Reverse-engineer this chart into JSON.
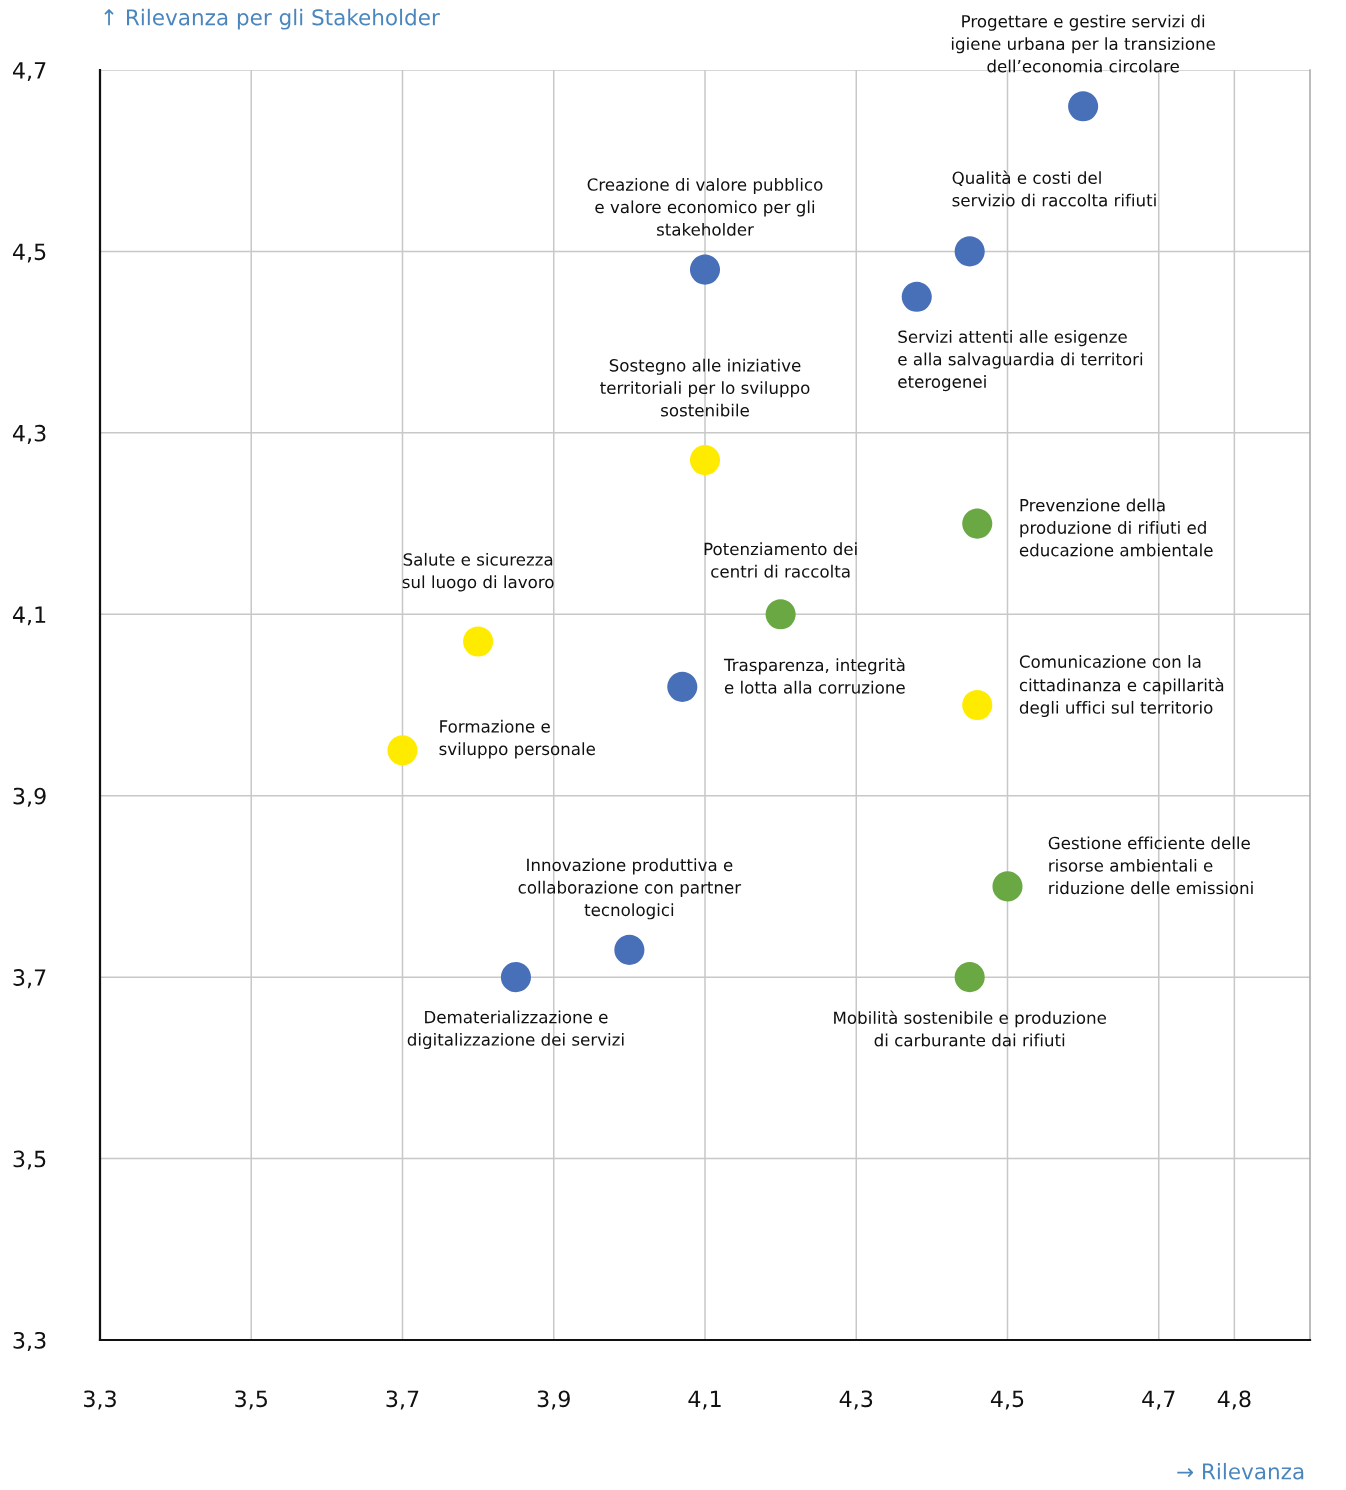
{
  "chart_data": {
    "type": "scatter",
    "xlabel": "→ Rilevanza",
    "ylabel": "↑ Rilevanza per gli Stakeholder",
    "x": [
      4.6,
      4.1,
      4.45,
      4.38,
      4.1,
      4.46,
      4.2,
      3.8,
      4.07,
      4.46,
      3.7,
      4.5,
      4.0,
      3.85,
      4.45
    ],
    "values": [
      4.66,
      4.48,
      4.5,
      4.45,
      4.27,
      4.2,
      4.1,
      4.07,
      4.02,
      4.0,
      3.95,
      3.8,
      3.73,
      3.7,
      3.7
    ],
    "colors": [
      "#4770b8",
      "#4770b8",
      "#4770b8",
      "#4770b8",
      "#ffeb00",
      "#6aa843",
      "#6aa843",
      "#ffeb00",
      "#4770b8",
      "#ffeb00",
      "#ffeb00",
      "#6aa843",
      "#4770b8",
      "#4770b8",
      "#6aa843"
    ],
    "marker": "circle",
    "xlim": [
      3.3,
      4.9
    ],
    "ylim": [
      3.3,
      4.7
    ],
    "xticks": [
      {
        "value": 3.3,
        "label": "3,3"
      },
      {
        "value": 3.5,
        "label": "3,5"
      },
      {
        "value": 3.7,
        "label": "3,7"
      },
      {
        "value": 3.9,
        "label": "3,9"
      },
      {
        "value": 4.1,
        "label": "4,1"
      },
      {
        "value": 4.3,
        "label": "4,3"
      },
      {
        "value": 4.5,
        "label": "4,5"
      },
      {
        "value": 4.7,
        "label": "4,7"
      },
      {
        "value": 4.8,
        "label": "4,8"
      }
    ],
    "yticks": [
      {
        "value": 3.3,
        "label": "3,3"
      },
      {
        "value": 3.5,
        "label": "3,5"
      },
      {
        "value": 3.7,
        "label": "3,7"
      },
      {
        "value": 3.9,
        "label": "3,9"
      },
      {
        "value": 4.1,
        "label": "4,1"
      },
      {
        "value": 4.3,
        "label": "4,3"
      },
      {
        "value": 4.5,
        "label": "4,5"
      },
      {
        "value": 4.7,
        "label": "4,7"
      }
    ],
    "grid": true,
    "annotations": [
      {
        "text": "Progettare e gestire servizi di\nigiene urbana per la transizione\ndell’economia circolare",
        "x": 4.6,
        "y": 4.66
      },
      {
        "text": "Creazione di valore pubblico\ne valore economico per gli\nstakeholder",
        "x": 4.1,
        "y": 4.48
      },
      {
        "text": "Qualità e costi del\nservizio di raccolta rifiuti",
        "x": 4.45,
        "y": 4.5
      },
      {
        "text": "Servizi attenti alle esigenze\ne alla salvaguardia di territori\neterogenei",
        "x": 4.38,
        "y": 4.45
      },
      {
        "text": "Sostegno alle iniziative\nterritoriali per lo sviluppo\nsostenibile",
        "x": 4.1,
        "y": 4.27
      },
      {
        "text": "Prevenzione della\nproduzione di rifiuti ed\neducazione ambientale",
        "x": 4.46,
        "y": 4.2
      },
      {
        "text": "Potenziamento dei\ncentri di raccolta",
        "x": 4.2,
        "y": 4.1
      },
      {
        "text": "Salute e sicurezza\nsul luogo di lavoro",
        "x": 3.8,
        "y": 4.07
      },
      {
        "text": "Trasparenza, integrità\ne lotta alla corruzione",
        "x": 4.07,
        "y": 4.02
      },
      {
        "text": "Comunicazione con la\ncittadinanza e capillarità\ndegli uffici sul territorio",
        "x": 4.46,
        "y": 4.0
      },
      {
        "text": "Formazione e\nsviluppo personale",
        "x": 3.7,
        "y": 3.95
      },
      {
        "text": "Gestione efficiente delle\nrisorse ambientali e\nriduzione delle emissioni",
        "x": 4.5,
        "y": 3.8
      },
      {
        "text": "Innovazione produttiva e\ncollaborazione con partner\ntecnologici",
        "x": 4.0,
        "y": 3.73
      },
      {
        "text": "Dematerializzazione e\ndigitalizzazione dei servizi",
        "x": 3.85,
        "y": 3.7
      },
      {
        "text": "Mobilità sostenibile e produzione\ndi carburante dai rifiuti",
        "x": 4.45,
        "y": 3.7
      }
    ]
  }
}
